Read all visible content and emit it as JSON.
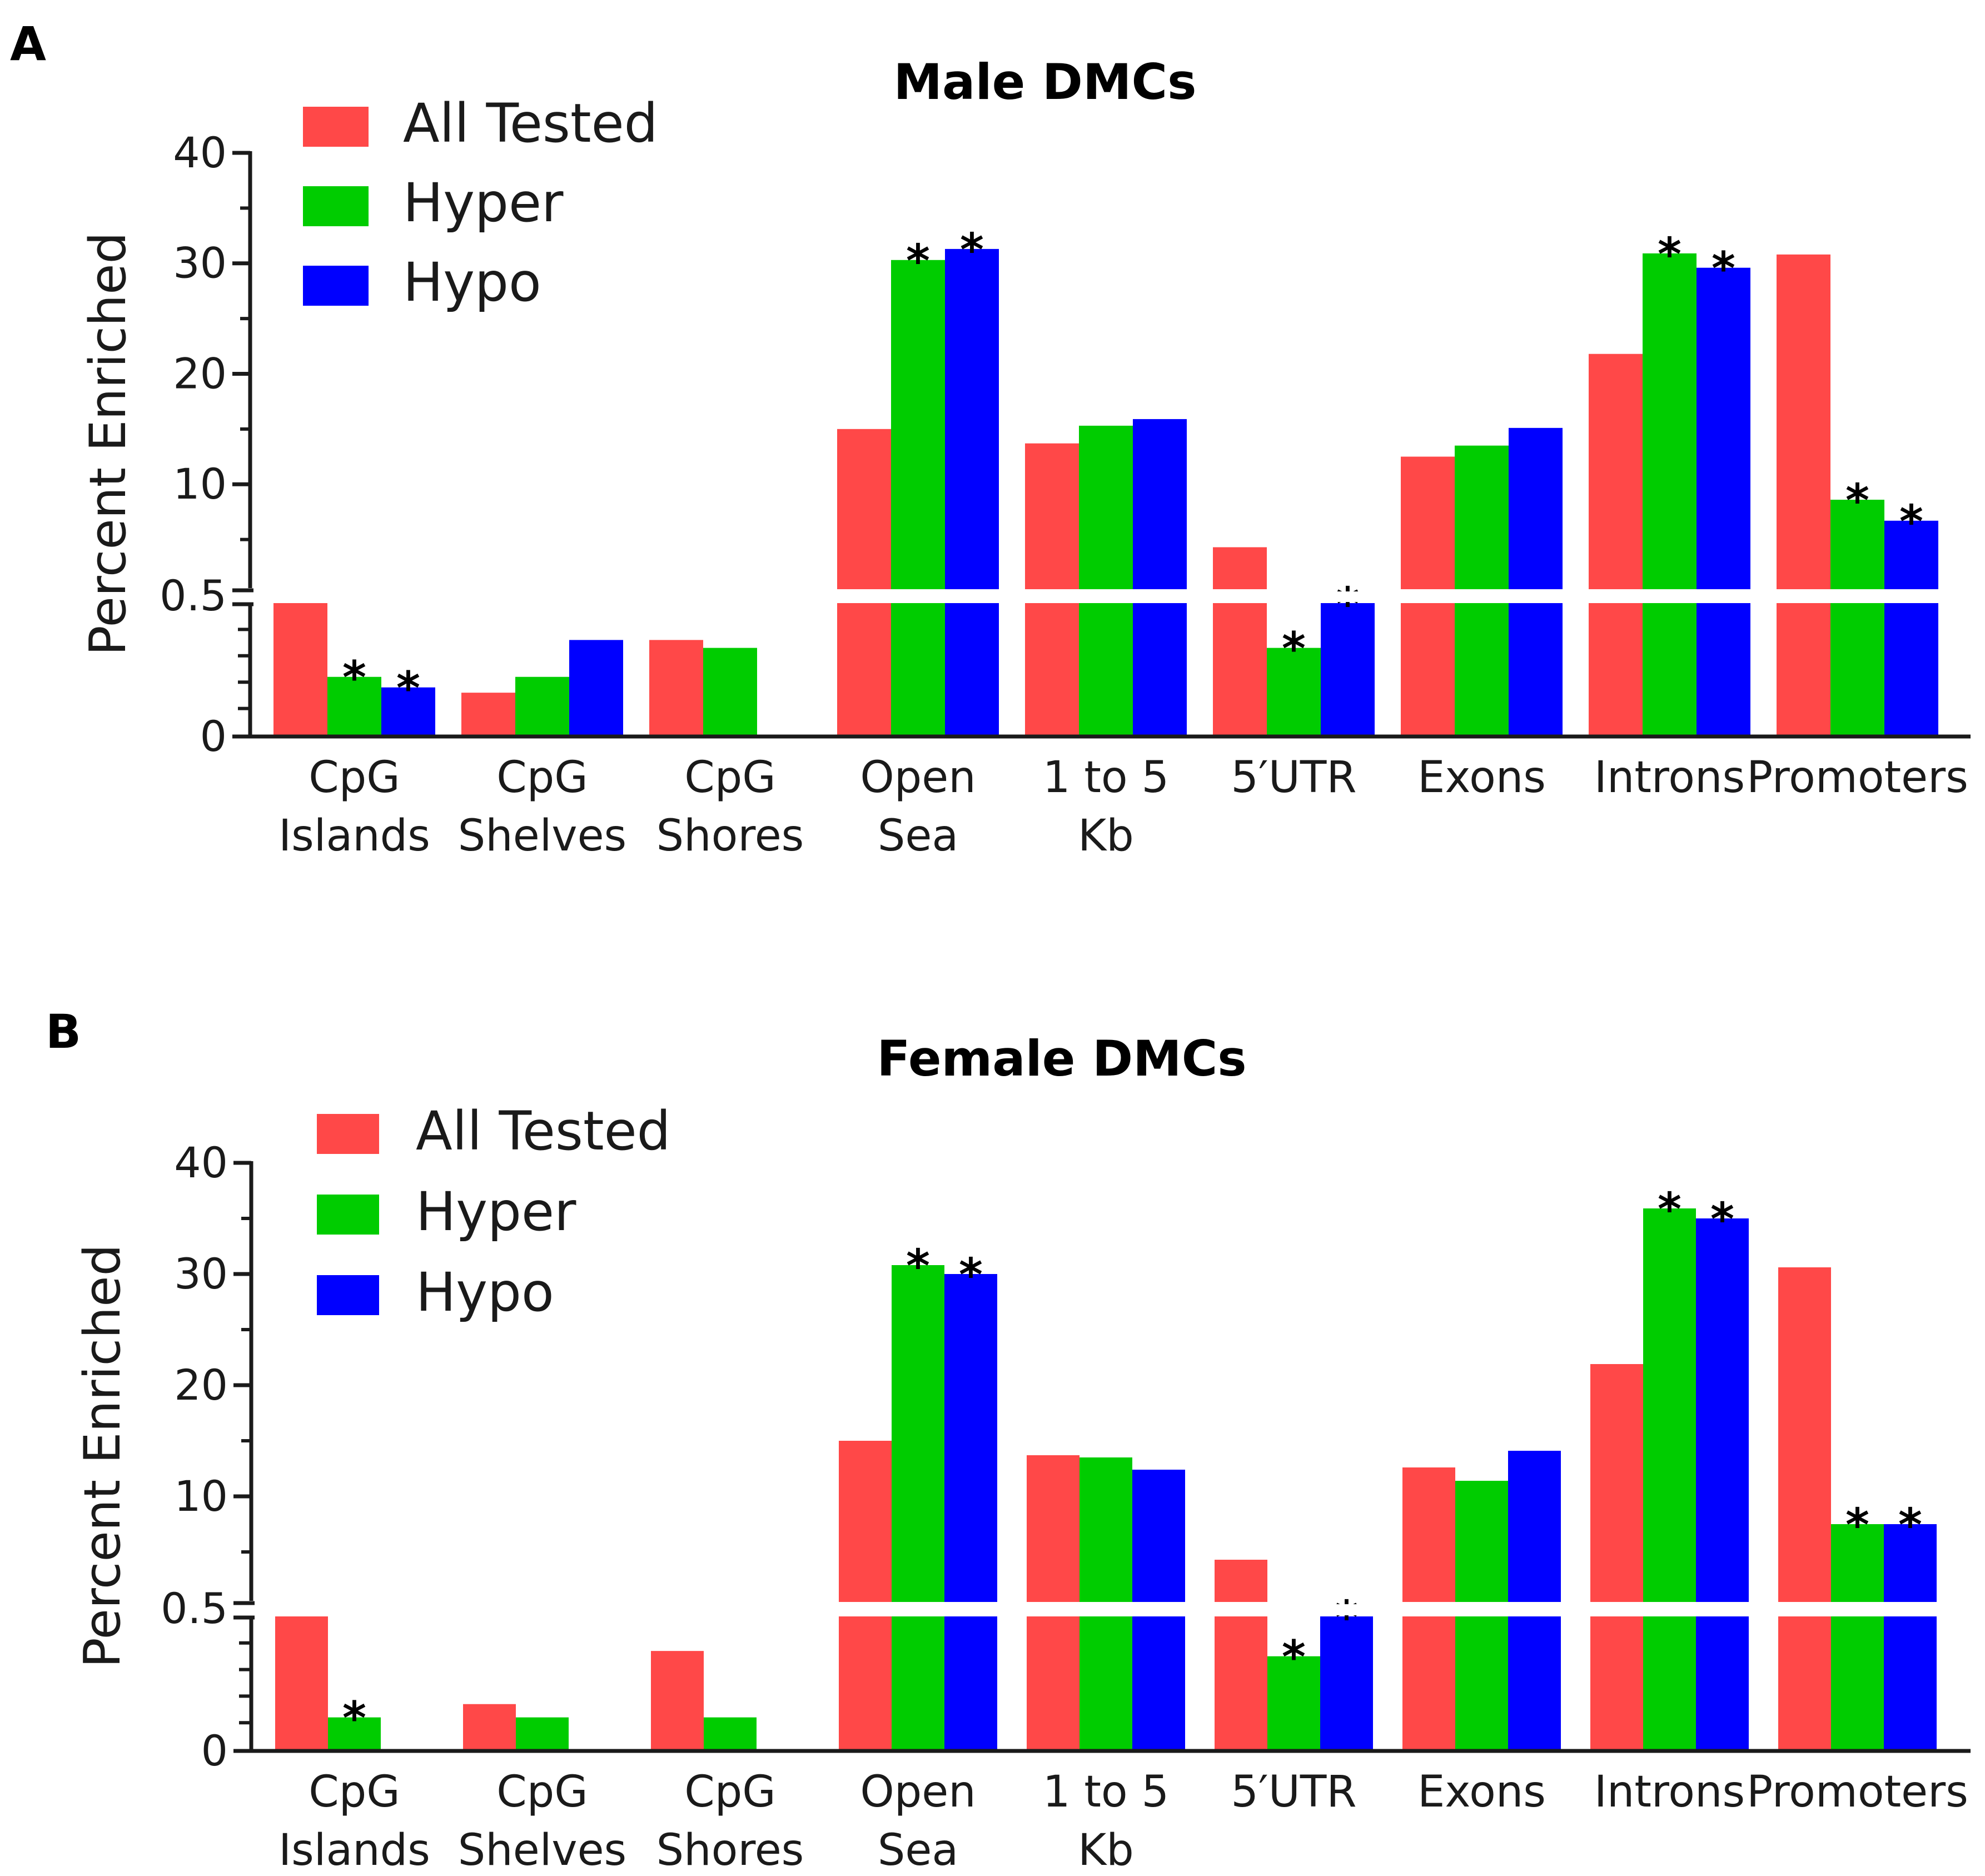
{
  "figure": {
    "colors": {
      "all_tested": "#ff4848",
      "hyper": "#00cc00",
      "hypo": "#0000ff",
      "axis": "#1a1a1a"
    }
  },
  "chart_data": [
    {
      "type": "bar",
      "panel_letter": "A",
      "title": "Male DMCs",
      "ylabel": "Percent Enriched",
      "xlabel": "",
      "categories": [
        "CpG Islands",
        "CpG Shelves",
        "CpG Shores",
        "Open Sea",
        "1 to 5 Kb",
        "5′UTR",
        "Exons",
        "Introns",
        "Promoters"
      ],
      "category_lines": [
        [
          "CpG",
          "Islands"
        ],
        [
          "CpG",
          "Shelves"
        ],
        [
          "CpG",
          "Shores"
        ],
        [
          "Open",
          "Sea"
        ],
        [
          "1 to 5",
          "Kb"
        ],
        [
          "5′UTR"
        ],
        [
          "Exons"
        ],
        [
          "Introns"
        ],
        [
          "Promoters"
        ]
      ],
      "series": [
        {
          "name": "All Tested",
          "color": "#ff4848",
          "values": [
            0.5,
            0.16,
            0.36,
            15.0,
            13.7,
            4.3,
            12.5,
            21.8,
            30.8
          ]
        },
        {
          "name": "Hyper",
          "color": "#00cc00",
          "values": [
            0.22,
            0.22,
            0.33,
            30.3,
            15.3,
            0.33,
            13.5,
            30.9,
            8.6
          ]
        },
        {
          "name": "Hypo",
          "color": "#0000ff",
          "values": [
            0.18,
            0.36,
            0,
            31.3,
            15.9,
            0.5,
            15.1,
            29.6,
            6.7
          ]
        }
      ],
      "significant": [
        [
          false,
          true,
          true
        ],
        [
          false,
          false,
          false
        ],
        [
          false,
          false,
          false
        ],
        [
          false,
          true,
          true
        ],
        [
          false,
          false,
          false
        ],
        [
          false,
          true,
          true
        ],
        [
          false,
          false,
          false
        ],
        [
          false,
          true,
          true
        ],
        [
          false,
          true,
          true
        ]
      ],
      "significance_marker": "*",
      "y_axis": {
        "lower_range": [
          0,
          0.5
        ],
        "upper_range": [
          0.5,
          40
        ],
        "break_at": 0.5,
        "ticks": [
          "0",
          "0.5",
          "10",
          "20",
          "30",
          "40"
        ]
      },
      "legend_position": "top-left"
    },
    {
      "type": "bar",
      "panel_letter": "B",
      "title": "Female DMCs",
      "ylabel": "Percent Enriched",
      "xlabel": "",
      "categories": [
        "CpG Islands",
        "CpG Shelves",
        "CpG Shores",
        "Open Sea",
        "1 to 5 Kb",
        "5′UTR",
        "Exons",
        "Introns",
        "Promoters"
      ],
      "category_lines": [
        [
          "CpG",
          "Islands"
        ],
        [
          "CpG",
          "Shelves"
        ],
        [
          "CpG",
          "Shores"
        ],
        [
          "Open",
          "Sea"
        ],
        [
          "1 to 5",
          "Kb"
        ],
        [
          "5′UTR"
        ],
        [
          "Exons"
        ],
        [
          "Introns"
        ],
        [
          "Promoters"
        ]
      ],
      "series": [
        {
          "name": "All Tested",
          "color": "#ff4848",
          "values": [
            0.5,
            0.17,
            0.37,
            15.0,
            13.7,
            4.3,
            12.6,
            21.9,
            30.6
          ]
        },
        {
          "name": "Hyper",
          "color": "#00cc00",
          "values": [
            0.12,
            0.12,
            0.12,
            30.8,
            13.5,
            0.35,
            11.4,
            35.9,
            7.5
          ]
        },
        {
          "name": "Hypo",
          "color": "#0000ff",
          "values": [
            0,
            0,
            0,
            30.0,
            12.4,
            0.5,
            14.1,
            35.0,
            7.5
          ]
        }
      ],
      "significant": [
        [
          false,
          true,
          false
        ],
        [
          false,
          false,
          false
        ],
        [
          false,
          false,
          false
        ],
        [
          false,
          true,
          true
        ],
        [
          false,
          false,
          false
        ],
        [
          false,
          true,
          true
        ],
        [
          false,
          false,
          false
        ],
        [
          false,
          true,
          true
        ],
        [
          false,
          true,
          true
        ]
      ],
      "significance_marker": "*",
      "y_axis": {
        "lower_range": [
          0,
          0.5
        ],
        "upper_range": [
          0.5,
          40
        ],
        "break_at": 0.5,
        "ticks": [
          "0",
          "0.5",
          "10",
          "20",
          "30",
          "40"
        ]
      },
      "legend_position": "top-left"
    }
  ]
}
